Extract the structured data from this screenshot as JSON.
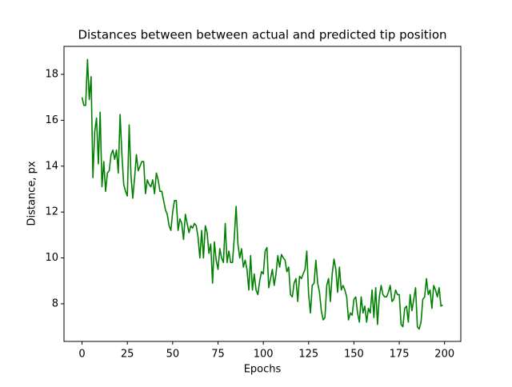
{
  "chart_data": {
    "type": "line",
    "title": "Distances between between actual and predicted tip position",
    "x_label": "Epochs",
    "y_label": "Distance, px",
    "color": "green",
    "x": [
      0,
      1,
      2,
      3,
      4,
      5,
      6,
      7,
      8,
      9,
      10,
      11,
      12,
      13,
      14,
      15,
      16,
      17,
      18,
      19,
      20,
      21,
      22,
      23,
      24,
      25,
      26,
      27,
      28,
      29,
      30,
      31,
      32,
      33,
      34,
      35,
      36,
      37,
      38,
      39,
      40,
      41,
      42,
      43,
      44,
      45,
      46,
      47,
      48,
      49,
      50,
      51,
      52,
      53,
      54,
      55,
      56,
      57,
      58,
      59,
      60,
      61,
      62,
      63,
      64,
      65,
      66,
      67,
      68,
      69,
      70,
      71,
      72,
      73,
      74,
      75,
      76,
      77,
      78,
      79,
      80,
      81,
      82,
      83,
      84,
      85,
      86,
      87,
      88,
      89,
      90,
      91,
      92,
      93,
      94,
      95,
      96,
      97,
      98,
      99,
      100,
      101,
      102,
      103,
      104,
      105,
      106,
      107,
      108,
      109,
      110,
      111,
      112,
      113,
      114,
      115,
      116,
      117,
      118,
      119,
      120,
      121,
      122,
      123,
      124,
      125,
      126,
      127,
      128,
      129,
      130,
      131,
      132,
      133,
      134,
      135,
      136,
      137,
      138,
      139,
      140,
      141,
      142,
      143,
      144,
      145,
      146,
      147,
      148,
      149,
      150,
      151,
      152,
      153,
      154,
      155,
      156,
      157,
      158,
      159,
      160,
      161,
      162,
      163,
      164,
      165,
      166,
      167,
      168,
      169,
      170,
      171,
      172,
      173,
      174,
      175,
      176,
      177,
      178,
      179,
      180,
      181,
      182,
      183,
      184,
      185,
      186,
      187,
      188,
      189,
      190,
      191,
      192,
      193,
      194,
      195,
      196,
      197,
      198,
      199
    ],
    "values": [
      17.0,
      16.65,
      16.65,
      18.65,
      16.9,
      17.9,
      13.5,
      15.5,
      16.1,
      14.1,
      16.35,
      13.1,
      14.2,
      12.9,
      13.7,
      13.8,
      14.5,
      14.7,
      14.3,
      14.7,
      13.7,
      16.25,
      14.5,
      13.2,
      12.9,
      12.7,
      15.8,
      13.6,
      12.6,
      13.5,
      14.5,
      13.8,
      14.0,
      14.2,
      14.2,
      12.8,
      13.4,
      13.2,
      13.1,
      13.4,
      12.8,
      13.7,
      13.4,
      12.9,
      12.9,
      12.5,
      12.1,
      11.9,
      11.4,
      11.2,
      12.0,
      12.5,
      12.5,
      11.2,
      11.7,
      11.5,
      10.8,
      11.9,
      11.5,
      11.1,
      11.4,
      11.3,
      11.5,
      11.4,
      10.9,
      10.0,
      11.2,
      10.0,
      11.4,
      11.1,
      10.2,
      10.6,
      8.9,
      10.7,
      9.9,
      9.5,
      10.4,
      10.0,
      9.8,
      11.5,
      9.8,
      10.3,
      9.8,
      9.8,
      10.9,
      12.25,
      10.6,
      10.0,
      10.4,
      9.6,
      9.9,
      9.5,
      8.6,
      10.1,
      8.6,
      9.3,
      8.6,
      8.4,
      9.0,
      9.4,
      9.3,
      10.3,
      10.45,
      8.7,
      9.1,
      9.5,
      8.8,
      9.3,
      10.1,
      9.6,
      10.15,
      10.0,
      9.9,
      9.4,
      9.6,
      8.4,
      8.3,
      8.9,
      9.1,
      8.1,
      9.2,
      9.1,
      9.3,
      9.5,
      10.3,
      8.4,
      7.6,
      8.8,
      8.9,
      9.9,
      8.9,
      8.5,
      7.7,
      7.3,
      7.4,
      8.8,
      9.1,
      8.1,
      9.3,
      9.95,
      9.5,
      8.5,
      9.6,
      8.6,
      8.8,
      8.6,
      8.3,
      7.3,
      7.6,
      7.5,
      8.2,
      8.3,
      7.6,
      7.2,
      8.3,
      7.6,
      7.9,
      7.2,
      7.8,
      7.6,
      8.6,
      7.4,
      8.7,
      7.1,
      8.3,
      8.8,
      8.4,
      8.3,
      8.3,
      8.5,
      8.8,
      8.1,
      8.2,
      8.6,
      8.4,
      8.4,
      7.1,
      7.0,
      7.8,
      7.9,
      7.2,
      8.4,
      7.7,
      8.2,
      8.7,
      7.0,
      6.9,
      7.2,
      8.2,
      8.3,
      9.1,
      8.4,
      8.6,
      7.8,
      8.8,
      8.6,
      8.3,
      8.7,
      7.9,
      7.95
    ],
    "xlim": [
      -9.95,
      208.95
    ],
    "xticks": [
      0,
      25,
      50,
      75,
      100,
      125,
      150,
      175,
      200
    ],
    "ylim": [
      6.36,
      19.22
    ],
    "yticks": [
      8,
      10,
      12,
      14,
      16,
      18
    ]
  }
}
